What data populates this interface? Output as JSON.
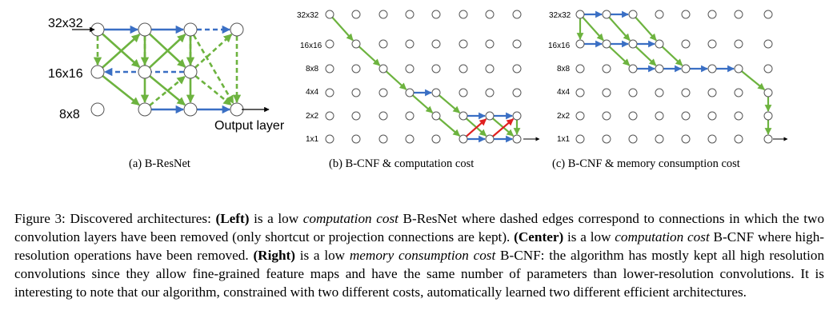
{
  "panel_a": {
    "caption": "(a) B-ResNet",
    "row_labels": [
      "32x32",
      "16x16",
      "8x8"
    ],
    "output_label": "Output layer"
  },
  "panel_b": {
    "caption": "(b) B-CNF & computation cost",
    "row_labels": [
      "32x32",
      "16x16",
      "8x8",
      "4x4",
      "2x2",
      "1x1"
    ]
  },
  "panel_c": {
    "caption": "(c) B-CNF & memory consumption cost",
    "row_labels": [
      "32x32",
      "16x16",
      "8x8",
      "4x4",
      "2x2",
      "1x1"
    ]
  },
  "colors": {
    "blue": "#3a6fc4",
    "green": "#6db33f",
    "red": "#e02020"
  },
  "caption": {
    "figure_label": "Figure 3:",
    "intro": "Discovered architectures:",
    "left_bold": "(Left)",
    "left_t1": "is a low",
    "left_italic": "computation cost",
    "left_t2": "B-ResNet where dashed edges correspond to connections in which the two convolution layers have been removed (only shortcut or projection connections are kept).",
    "center_bold": "(Center)",
    "center_t1": "is a low",
    "center_italic": "computation cost",
    "center_t2": "B-CNF where high-resolution operations have been removed.",
    "right_bold": "(Right)",
    "right_t1": "is a low",
    "right_italic": "memory consumption cost",
    "right_t2": "B-CNF: the algorithm has mostly kept all high resolution convolutions since they allow fine-grained feature maps and have the same number of parameters than lower-resolution convolutions. It is interesting to note that our algorithm, constrained with two different costs, automatically learned two different efficient architectures."
  }
}
